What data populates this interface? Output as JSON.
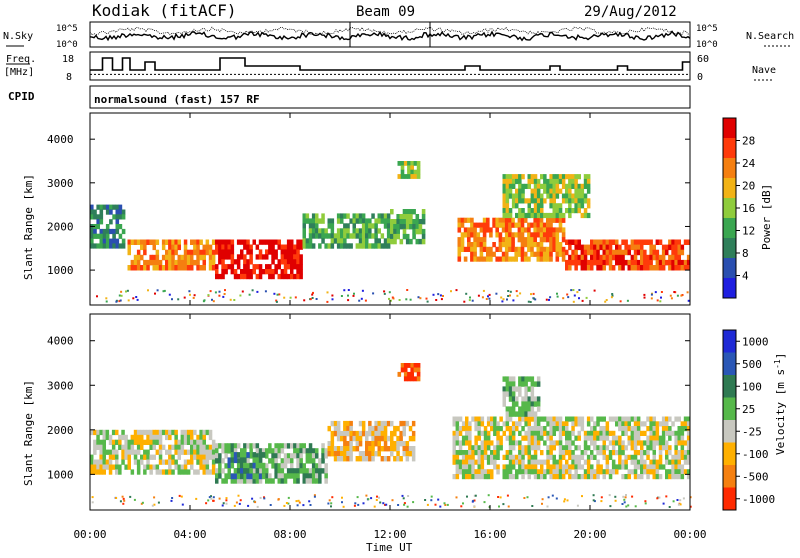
{
  "header": {
    "station": "Kodiak (fitACF)",
    "beam": "Beam 09",
    "date": "29/Aug/2012",
    "program": "normalsound (fast) 157 RF"
  },
  "labels": {
    "nsky": "N.Sky",
    "nsearch": "N.Search",
    "freq": "Freq.",
    "freq_unit": "[MHz]",
    "nave": "Nave",
    "cpid": "CPID",
    "ylabel": "Slant Range [km]",
    "xlabel": "Time UT"
  },
  "colors": {
    "power": [
      "#1f1fe0",
      "#2a4fb0",
      "#2f7f5a",
      "#3aa650",
      "#8fcc3c",
      "#f2b316",
      "#f57f10",
      "#ff3a0a",
      "#e00000"
    ],
    "velocity": [
      "#1f2ad6",
      "#2a57b6",
      "#2f7a52",
      "#56b84a",
      "#c8c8c0",
      "#ffb000",
      "#f58010",
      "#ff2a00"
    ]
  },
  "chart_data": [
    {
      "type": "line",
      "name": "noise-panel",
      "series": [
        {
          "name": "N.Sky"
        },
        {
          "name": "N.Search"
        }
      ],
      "x": [
        "00:00",
        "04:00",
        "08:00",
        "12:00",
        "16:00",
        "20:00",
        "00:00"
      ],
      "left_ticks": [
        "10^5",
        "10^0"
      ],
      "right_ticks": [
        "10^5",
        "10^0"
      ]
    },
    {
      "type": "line",
      "name": "freq-nave-panel",
      "series": [
        {
          "name": "Freq.",
          "points": [
            [
              0.0,
              11
            ],
            [
              0.5,
              17
            ],
            [
              0.9,
              11
            ],
            [
              1.3,
              17
            ],
            [
              1.6,
              11
            ],
            [
              2.0,
              11
            ],
            [
              2.2,
              15
            ],
            [
              2.6,
              11
            ],
            [
              5.0,
              11
            ],
            [
              5.2,
              17
            ],
            [
              6.2,
              13
            ],
            [
              8.4,
              11
            ],
            [
              12.0,
              11
            ],
            [
              14.8,
              11
            ],
            [
              15.0,
              13
            ],
            [
              15.6,
              11
            ],
            [
              18.0,
              11
            ],
            [
              18.4,
              13
            ],
            [
              18.8,
              11
            ],
            [
              20.9,
              11
            ],
            [
              21.1,
              13
            ],
            [
              21.5,
              11
            ],
            [
              23.5,
              11
            ],
            [
              23.7,
              15
            ],
            [
              24.0,
              15
            ]
          ]
        },
        {
          "name": "Nave",
          "points": [
            [
              0,
              10
            ],
            [
              24,
              10
            ]
          ]
        }
      ],
      "left_ticks": [
        18,
        8
      ],
      "right_ticks": [
        60,
        0
      ]
    },
    {
      "type": "heatmap",
      "name": "power",
      "title": "Power [dB]",
      "xlabel": "Time UT",
      "ylabel": "Slant Range [km]",
      "x": [
        "00:00",
        "04:00",
        "08:00",
        "12:00",
        "16:00",
        "20:00",
        "00:00"
      ],
      "yticks": [
        1000,
        2000,
        3000,
        4000
      ],
      "ylim": [
        200,
        4600
      ],
      "colorbar_ticks": [
        4,
        8,
        12,
        16,
        20,
        24,
        28
      ],
      "bands": [
        {
          "t0": 0.0,
          "t1": 1.4,
          "r0": 1500,
          "r1": 2500,
          "level": 2
        },
        {
          "t0": 1.5,
          "t1": 5.0,
          "r0": 1000,
          "r1": 1700,
          "level": 6
        },
        {
          "t0": 5.0,
          "t1": 8.5,
          "r0": 800,
          "r1": 1700,
          "level": 8
        },
        {
          "t0": 8.5,
          "t1": 12.0,
          "r0": 1500,
          "r1": 2300,
          "level": 3
        },
        {
          "t0": 12.0,
          "t1": 13.4,
          "r0": 1600,
          "r1": 2400,
          "level": 3
        },
        {
          "t0": 12.3,
          "t1": 13.2,
          "r0": 3100,
          "r1": 3500,
          "level": 4
        },
        {
          "t0": 14.7,
          "t1": 19.0,
          "r0": 1200,
          "r1": 2200,
          "level": 6
        },
        {
          "t0": 19.0,
          "t1": 24.0,
          "r0": 1000,
          "r1": 1700,
          "level": 7
        },
        {
          "t0": 16.5,
          "t1": 20.0,
          "r0": 2200,
          "r1": 3200,
          "level": 4
        }
      ]
    },
    {
      "type": "heatmap",
      "name": "velocity",
      "title": "Velocity [m s^-1]",
      "xlabel": "Time UT",
      "ylabel": "Slant Range [km]",
      "x": [
        "00:00",
        "04:00",
        "08:00",
        "12:00",
        "16:00",
        "20:00",
        "00:00"
      ],
      "yticks": [
        1000,
        2000,
        3000,
        4000
      ],
      "ylim": [
        200,
        4600
      ],
      "colorbar_ticks": [
        "1000",
        "500",
        "100",
        "25",
        "-25",
        "-100",
        "-500",
        "-1000"
      ],
      "bands": [
        {
          "t0": 0.0,
          "t1": 5.0,
          "r0": 1000,
          "r1": 2000,
          "level": 4
        },
        {
          "t0": 5.0,
          "t1": 9.5,
          "r0": 800,
          "r1": 1700,
          "level": 3
        },
        {
          "t0": 5.5,
          "t1": 7.0,
          "r0": 900,
          "r1": 1500,
          "level": 2
        },
        {
          "t0": 9.5,
          "t1": 13.0,
          "r0": 1300,
          "r1": 2200,
          "level": 5
        },
        {
          "t0": 12.3,
          "t1": 13.2,
          "r0": 3100,
          "r1": 3500,
          "level": 7
        },
        {
          "t0": 14.5,
          "t1": 24.0,
          "r0": 900,
          "r1": 2300,
          "level": 4
        },
        {
          "t0": 16.5,
          "t1": 18.0,
          "r0": 2300,
          "r1": 3200,
          "level": 3
        }
      ]
    }
  ]
}
